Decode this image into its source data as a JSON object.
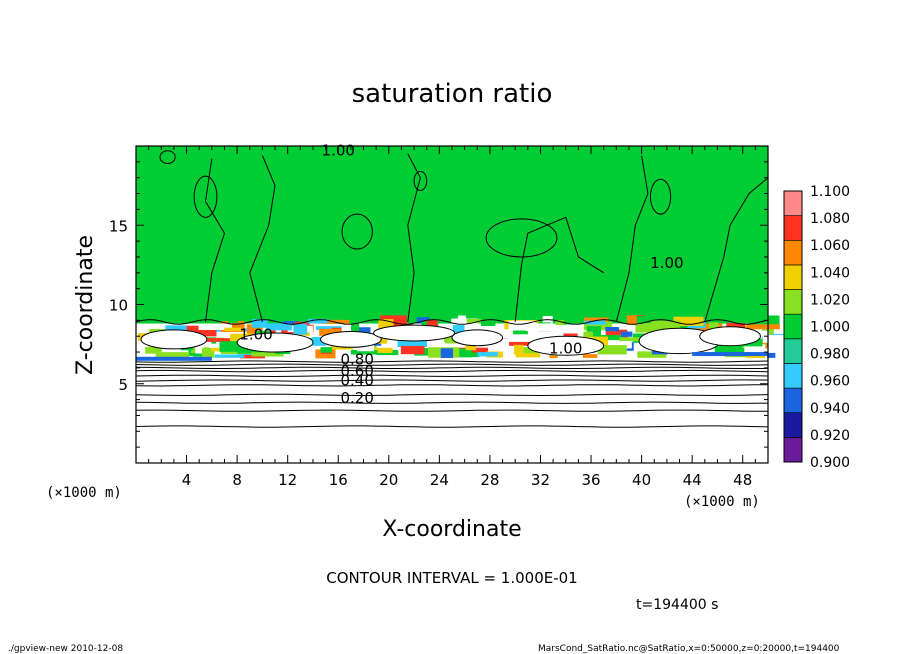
{
  "chart_data": {
    "type": "heatmap",
    "title": "saturation ratio",
    "xlabel": "X-coordinate",
    "ylabel": "Z-coordinate",
    "x_unit_left": "(×1000 m)",
    "x_unit_right": "(×1000 m)",
    "xlim": [
      0,
      50
    ],
    "ylim": [
      0,
      20
    ],
    "x_ticks": [
      4,
      8,
      12,
      16,
      20,
      24,
      28,
      32,
      36,
      40,
      44,
      48
    ],
    "y_ticks": [
      5,
      10,
      15
    ],
    "colorbar": {
      "levels": [
        0.9,
        0.92,
        0.94,
        0.96,
        0.98,
        1.0,
        1.02,
        1.04,
        1.06,
        1.08,
        1.1
      ],
      "labels": [
        "0.900",
        "0.920",
        "0.940",
        "0.960",
        "0.980",
        "1.000",
        "1.020",
        "1.040",
        "1.060",
        "1.080",
        "1.100"
      ],
      "colors": [
        "#6a1b9a",
        "#1a1aa0",
        "#1a66e0",
        "#33ccff",
        "#22cc99",
        "#00cc33",
        "#88e020",
        "#f0d000",
        "#ff8800",
        "#ff3322",
        "#ff8888"
      ]
    },
    "contour_labels": [
      {
        "text": "1.00",
        "x": 16.0,
        "z": 19.4
      },
      {
        "text": "1.00",
        "x": 42.0,
        "z": 12.3
      },
      {
        "text": "1.00",
        "x": 9.5,
        "z": 7.8
      },
      {
        "text": "1.00",
        "x": 34.0,
        "z": 6.9
      },
      {
        "text": "0.80",
        "x": 17.5,
        "z": 6.2
      },
      {
        "text": "0.60",
        "x": 17.5,
        "z": 5.5
      },
      {
        "text": "0.40",
        "x": 17.5,
        "z": 4.9
      },
      {
        "text": "0.20",
        "x": 17.5,
        "z": 3.8
      }
    ],
    "grid": false,
    "legend_position": "right"
  },
  "contour_interval": "CONTOUR INTERVAL = 1.000E-01",
  "time_label": "t=194400 s",
  "footer_left": "./gpview-new   2010-12-08",
  "footer_right": "MarsCond_SatRatio.nc@SatRatio,x=0:50000,z=0:20000,t=194400"
}
